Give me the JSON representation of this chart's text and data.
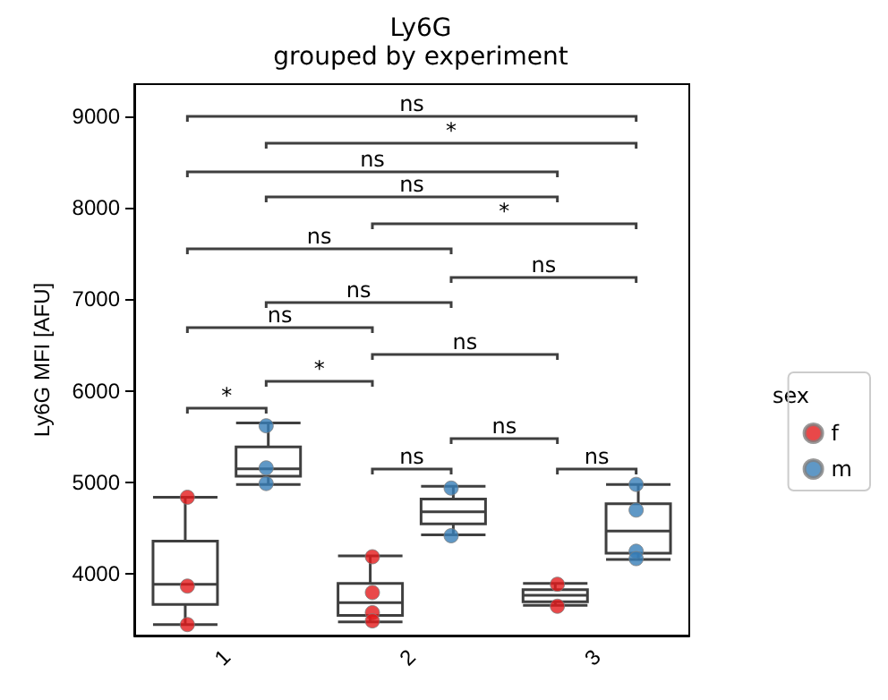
{
  "chart_data": {
    "type": "box",
    "title": "Ly6G",
    "subtitle": "grouped by experiment",
    "ylabel": "Ly6G MFI [AFU]",
    "legend_title": "sex",
    "categories": [
      "1",
      "2",
      "3"
    ],
    "series": [
      {
        "color": "#3f3f3f",
        "boxes": [
          {
            "low": 3450,
            "q1": 3670,
            "median": 3890,
            "q3": 4360,
            "high": 4840
          },
          {
            "low": 3480,
            "q1": 3550,
            "median": 3690,
            "q3": 3900,
            "high": 4200
          },
          {
            "low": 3660,
            "q1": 3700,
            "median": 3770,
            "q3": 3830,
            "high": 3900
          }
        ]
      },
      {
        "color": "#3f3f3f",
        "boxes": [
          {
            "low": 4980,
            "q1": 5070,
            "median": 5150,
            "q3": 5390,
            "high": 5650
          },
          {
            "low": 4430,
            "q1": 4550,
            "median": 4680,
            "q3": 4820,
            "high": 4960
          },
          {
            "low": 4160,
            "q1": 4230,
            "median": 4470,
            "q3": 4770,
            "high": 4980
          }
        ]
      },
      {
        "type": "scatter",
        "name": "f",
        "color": "#e41a1c",
        "x": [
          "1",
          "1",
          "1",
          "2",
          "2",
          "2",
          "2",
          "3",
          "3"
        ],
        "values": [
          4840,
          3870,
          3450,
          4190,
          3800,
          3580,
          3490,
          3890,
          3650
        ]
      },
      {
        "type": "scatter",
        "name": "m",
        "color": "#377eb8",
        "x": [
          "1",
          "1",
          "1",
          "2",
          "2",
          "3",
          "3",
          "3",
          "3"
        ],
        "values": [
          5620,
          5160,
          4990,
          4940,
          4420,
          4980,
          4700,
          4250,
          4170
        ]
      }
    ],
    "ylim": [
      3330,
      9350
    ],
    "yticks": [
      4000,
      5000,
      6000,
      7000,
      8000,
      9000
    ],
    "grid": false,
    "legend": "right",
    "marker": "circle",
    "annotations": [
      "ns",
      "*",
      "ns",
      "ns",
      "*",
      "ns",
      "ns",
      "ns",
      "ns",
      "ns",
      "*",
      "*",
      "ns",
      "ns",
      "ns"
    ]
  }
}
